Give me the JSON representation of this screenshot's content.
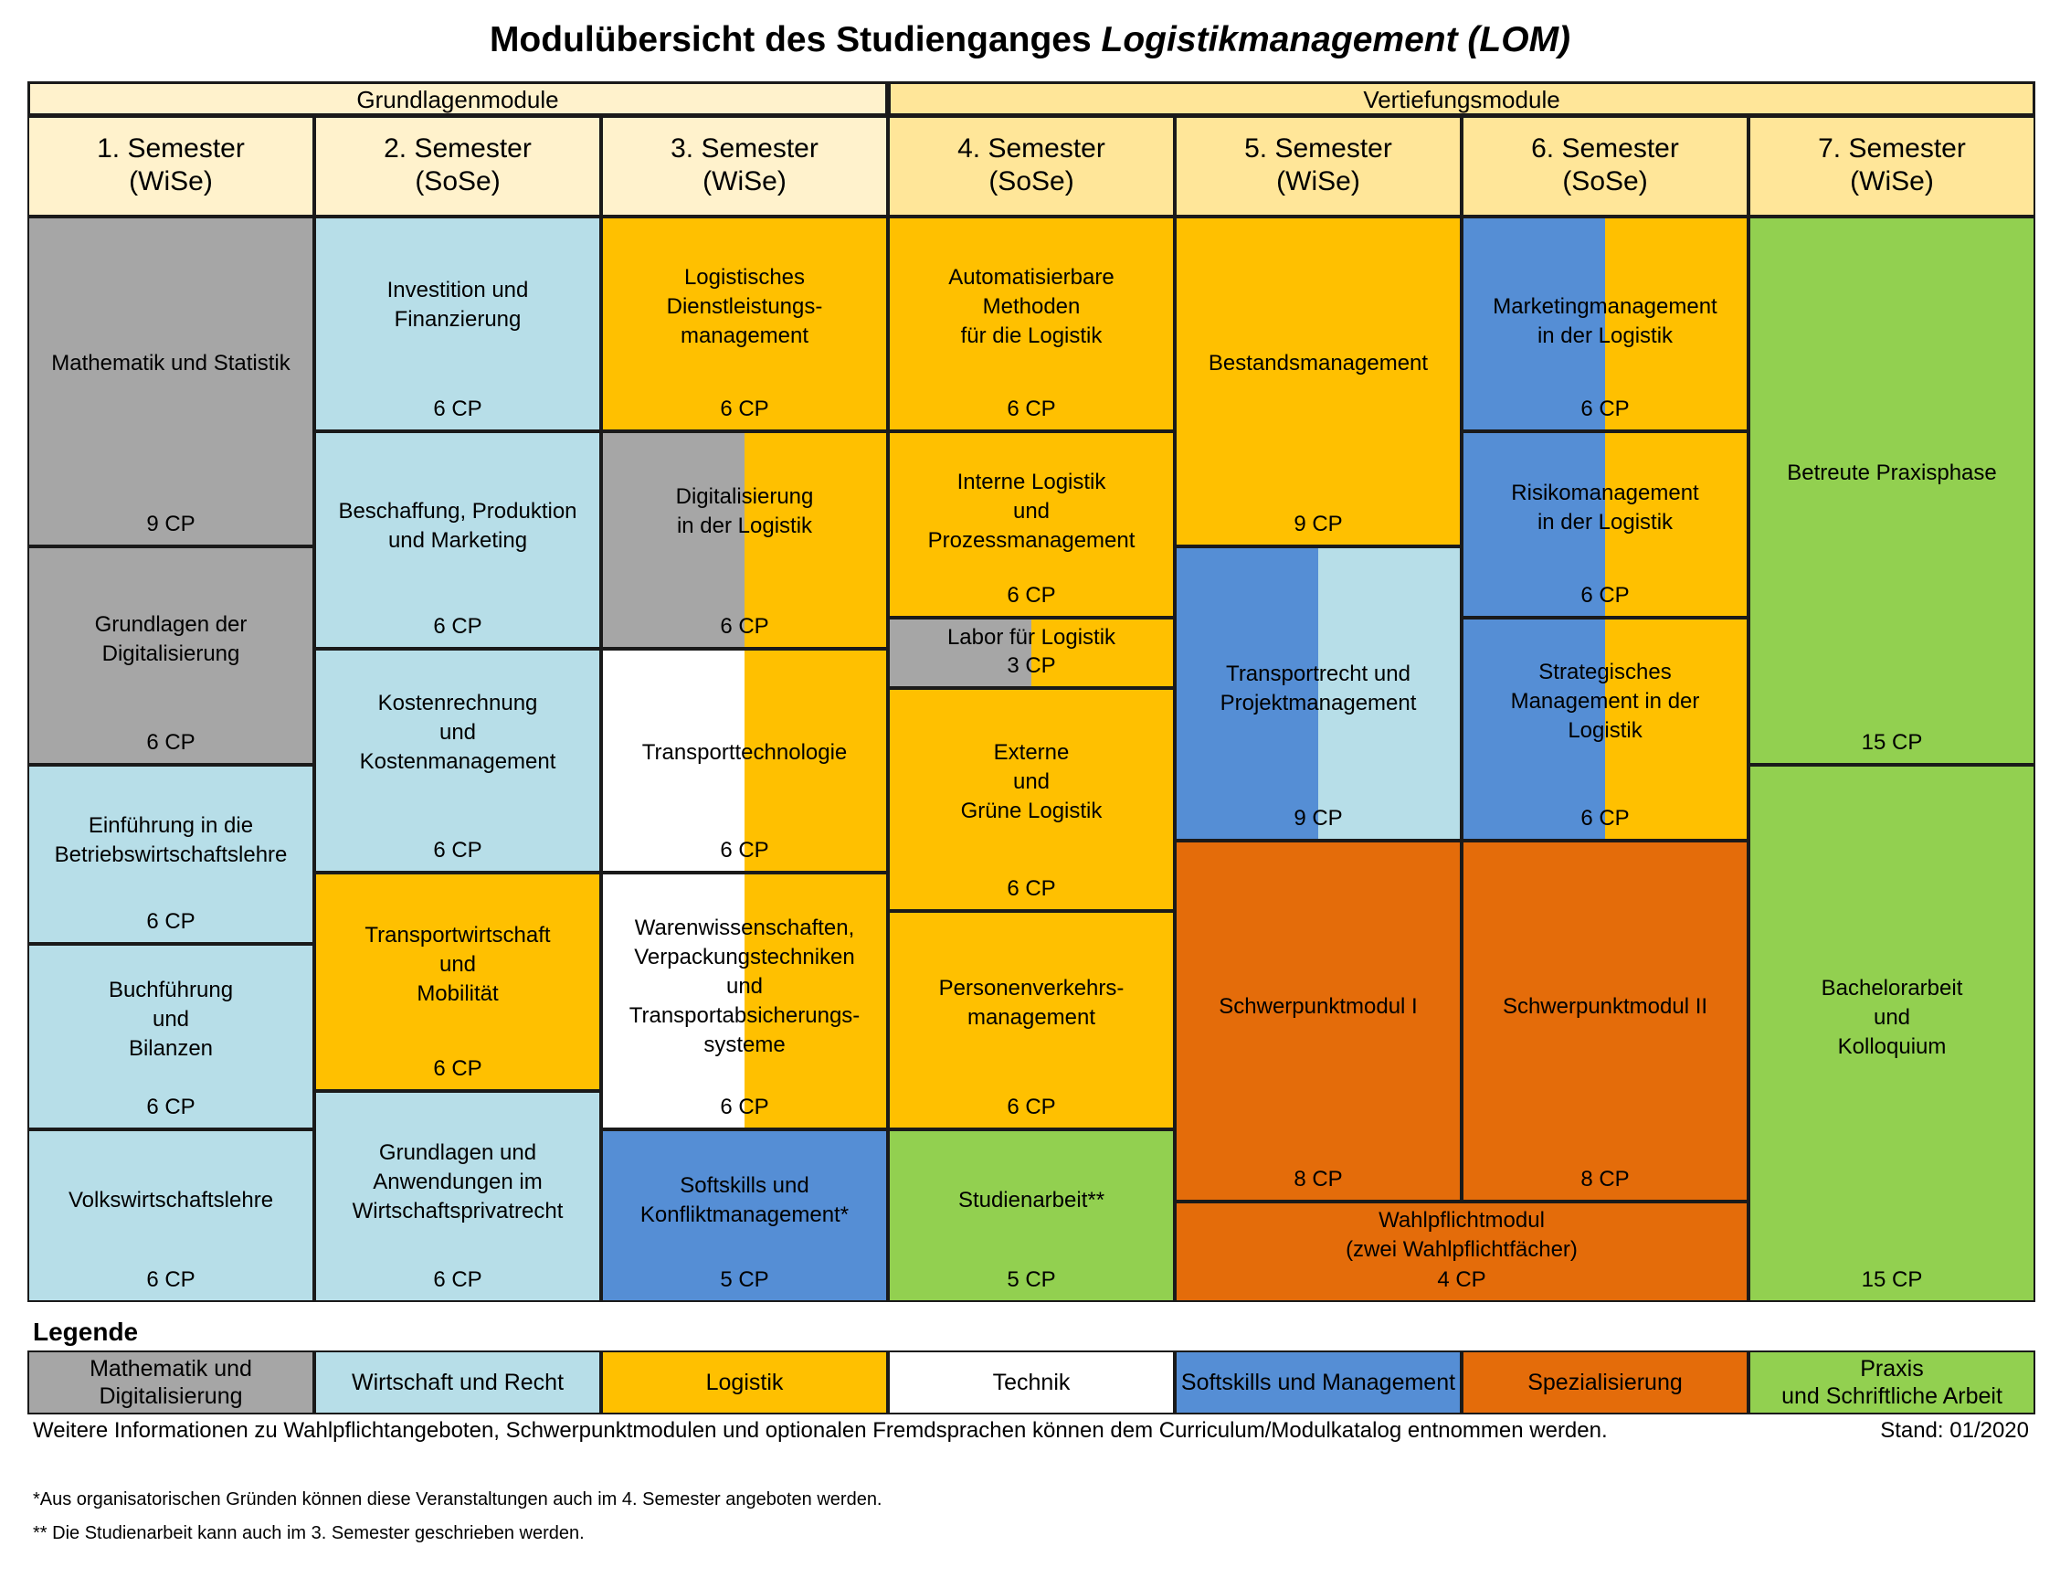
{
  "title": {
    "main": "Modulübersicht des Studienganges ",
    "italic": "Logistikmanagement (LOM)"
  },
  "colors": {
    "mathe": "#a6a6a6",
    "wirtschaft": "#b7dee8",
    "logistik": "#ffc000",
    "technik": "#ffffff",
    "softskills": "#558ed5",
    "spezialisierung": "#e46c0a",
    "praxis": "#92d050",
    "header_light": "#fff2cc",
    "header_dark": "#ffe699"
  },
  "groups": [
    {
      "label": "Grundlagenmodule"
    },
    {
      "label": "Vertiefungsmodule"
    }
  ],
  "semesters": [
    {
      "label": "1. Semester\n(WiSe)"
    },
    {
      "label": "2. Semester\n(SoSe)"
    },
    {
      "label": "3. Semester\n(WiSe)"
    },
    {
      "label": "4. Semester\n(SoSe)"
    },
    {
      "label": "5. Semester\n(WiSe)"
    },
    {
      "label": "6. Semester\n(SoSe)"
    },
    {
      "label": "7. Semester\n(WiSe)"
    }
  ],
  "modules": [
    {
      "name": "Mathematik und Statistik",
      "cp": "9 CP",
      "category": "mathe"
    },
    {
      "name": "Grundlagen der\nDigitalisierung",
      "cp": "6 CP",
      "category": "mathe"
    },
    {
      "name": "Einführung in die\nBetriebswirtschaftslehre",
      "cp": "6 CP",
      "category": "wirtschaft"
    },
    {
      "name": "Buchführung\nund\nBilanzen",
      "cp": "6 CP",
      "category": "wirtschaft"
    },
    {
      "name": "Volkswirtschaftslehre",
      "cp": "6 CP",
      "category": "wirtschaft"
    },
    {
      "name": "Investition und\nFinanzierung",
      "cp": "6 CP",
      "category": "wirtschaft"
    },
    {
      "name": "Beschaffung, Produktion\nund Marketing",
      "cp": "6 CP",
      "category": "wirtschaft"
    },
    {
      "name": "Kostenrechnung\nund\nKostenmanagement",
      "cp": "6 CP",
      "category": "wirtschaft"
    },
    {
      "name": "Transportwirtschaft\nund\nMobilität",
      "cp": "6 CP",
      "category": "logistik"
    },
    {
      "name": "Grundlagen und\nAnwendungen im\nWirtschaftsprivatrecht",
      "cp": "6 CP",
      "category": "wirtschaft"
    },
    {
      "name": "Logistisches\nDienstleistungs-\nmanagement",
      "cp": "6 CP",
      "category": "logistik"
    },
    {
      "name": "Digitalisierung\nin der Logistik",
      "cp": "6 CP",
      "category": "mathe+logistik"
    },
    {
      "name": "Transporttechnologie",
      "cp": "6 CP",
      "category": "technik+logistik"
    },
    {
      "name": "Warenwissenschaften,\nVerpackungstechniken\nund\nTransportabsicherungs-\nsysteme",
      "cp": "6 CP",
      "category": "technik+logistik"
    },
    {
      "name": "Softskills und\nKonfliktmanagement*",
      "cp": "5 CP",
      "category": "softskills"
    },
    {
      "name": "Automatisierbare\nMethoden\nfür die Logistik",
      "cp": "6 CP",
      "category": "logistik"
    },
    {
      "name": "Interne Logistik\nund\nProzessmanagement",
      "cp": "6 CP",
      "category": "logistik"
    },
    {
      "name": "Labor für Logistik",
      "cp": "3 CP",
      "category": "mathe+logistik"
    },
    {
      "name": "Externe\nund\nGrüne Logistik",
      "cp": "6 CP",
      "category": "logistik"
    },
    {
      "name": "Personenverkehrs-\nmanagement",
      "cp": "6 CP",
      "category": "logistik"
    },
    {
      "name": "Studienarbeit**",
      "cp": "5 CP",
      "category": "praxis"
    },
    {
      "name": "Bestandsmanagement",
      "cp": "9 CP",
      "category": "logistik"
    },
    {
      "name": "Transportrecht und\nProjektmanagement",
      "cp": "9 CP",
      "category": "softskills+wirtschaft"
    },
    {
      "name": "Schwerpunktmodul I",
      "cp": "8 CP",
      "category": "spezialisierung"
    },
    {
      "name": "Marketingmanagement\nin der Logistik",
      "cp": "6 CP",
      "category": "softskills+logistik"
    },
    {
      "name": "Risikomanagement\nin der Logistik",
      "cp": "6 CP",
      "category": "softskills+logistik"
    },
    {
      "name": "Strategisches\nManagement in der\nLogistik",
      "cp": "6 CP",
      "category": "softskills+logistik"
    },
    {
      "name": "Schwerpunktmodul II",
      "cp": "8 CP",
      "category": "spezialisierung"
    },
    {
      "name": "Wahlpflichtmodul\n(zwei Wahlpflichtfächer)",
      "cp": "4 CP",
      "category": "spezialisierung"
    },
    {
      "name": "Betreute Praxisphase",
      "cp": "15 CP",
      "category": "praxis"
    },
    {
      "name": "Bachelorarbeit\nund\nKolloquium",
      "cp": "15 CP",
      "category": "praxis"
    }
  ],
  "legend": {
    "title": "Legende",
    "items": [
      {
        "label": "Mathematik und\nDigitalisierung",
        "category": "mathe"
      },
      {
        "label": "Wirtschaft und Recht",
        "category": "wirtschaft"
      },
      {
        "label": "Logistik",
        "category": "logistik"
      },
      {
        "label": "Technik",
        "category": "technik"
      },
      {
        "label": "Softskills und Management",
        "category": "softskills"
      },
      {
        "label": "Spezialisierung",
        "category": "spezialisierung"
      },
      {
        "label": "Praxis\nund Schriftliche Arbeit",
        "category": "praxis"
      }
    ]
  },
  "info_text": "Weitere Informationen zu Wahlpflichtangeboten, Schwerpunktmodulen und optionalen Fremdsprachen können dem Curriculum/Modulkatalog entnommen werden.",
  "stand": "Stand: 01/2020",
  "footnotes": [
    "*Aus organisatorischen Gründen können diese Veranstaltungen auch im 4. Semester angeboten werden.",
    "** Die Studienarbeit kann auch im 3. Semester geschrieben werden."
  ]
}
